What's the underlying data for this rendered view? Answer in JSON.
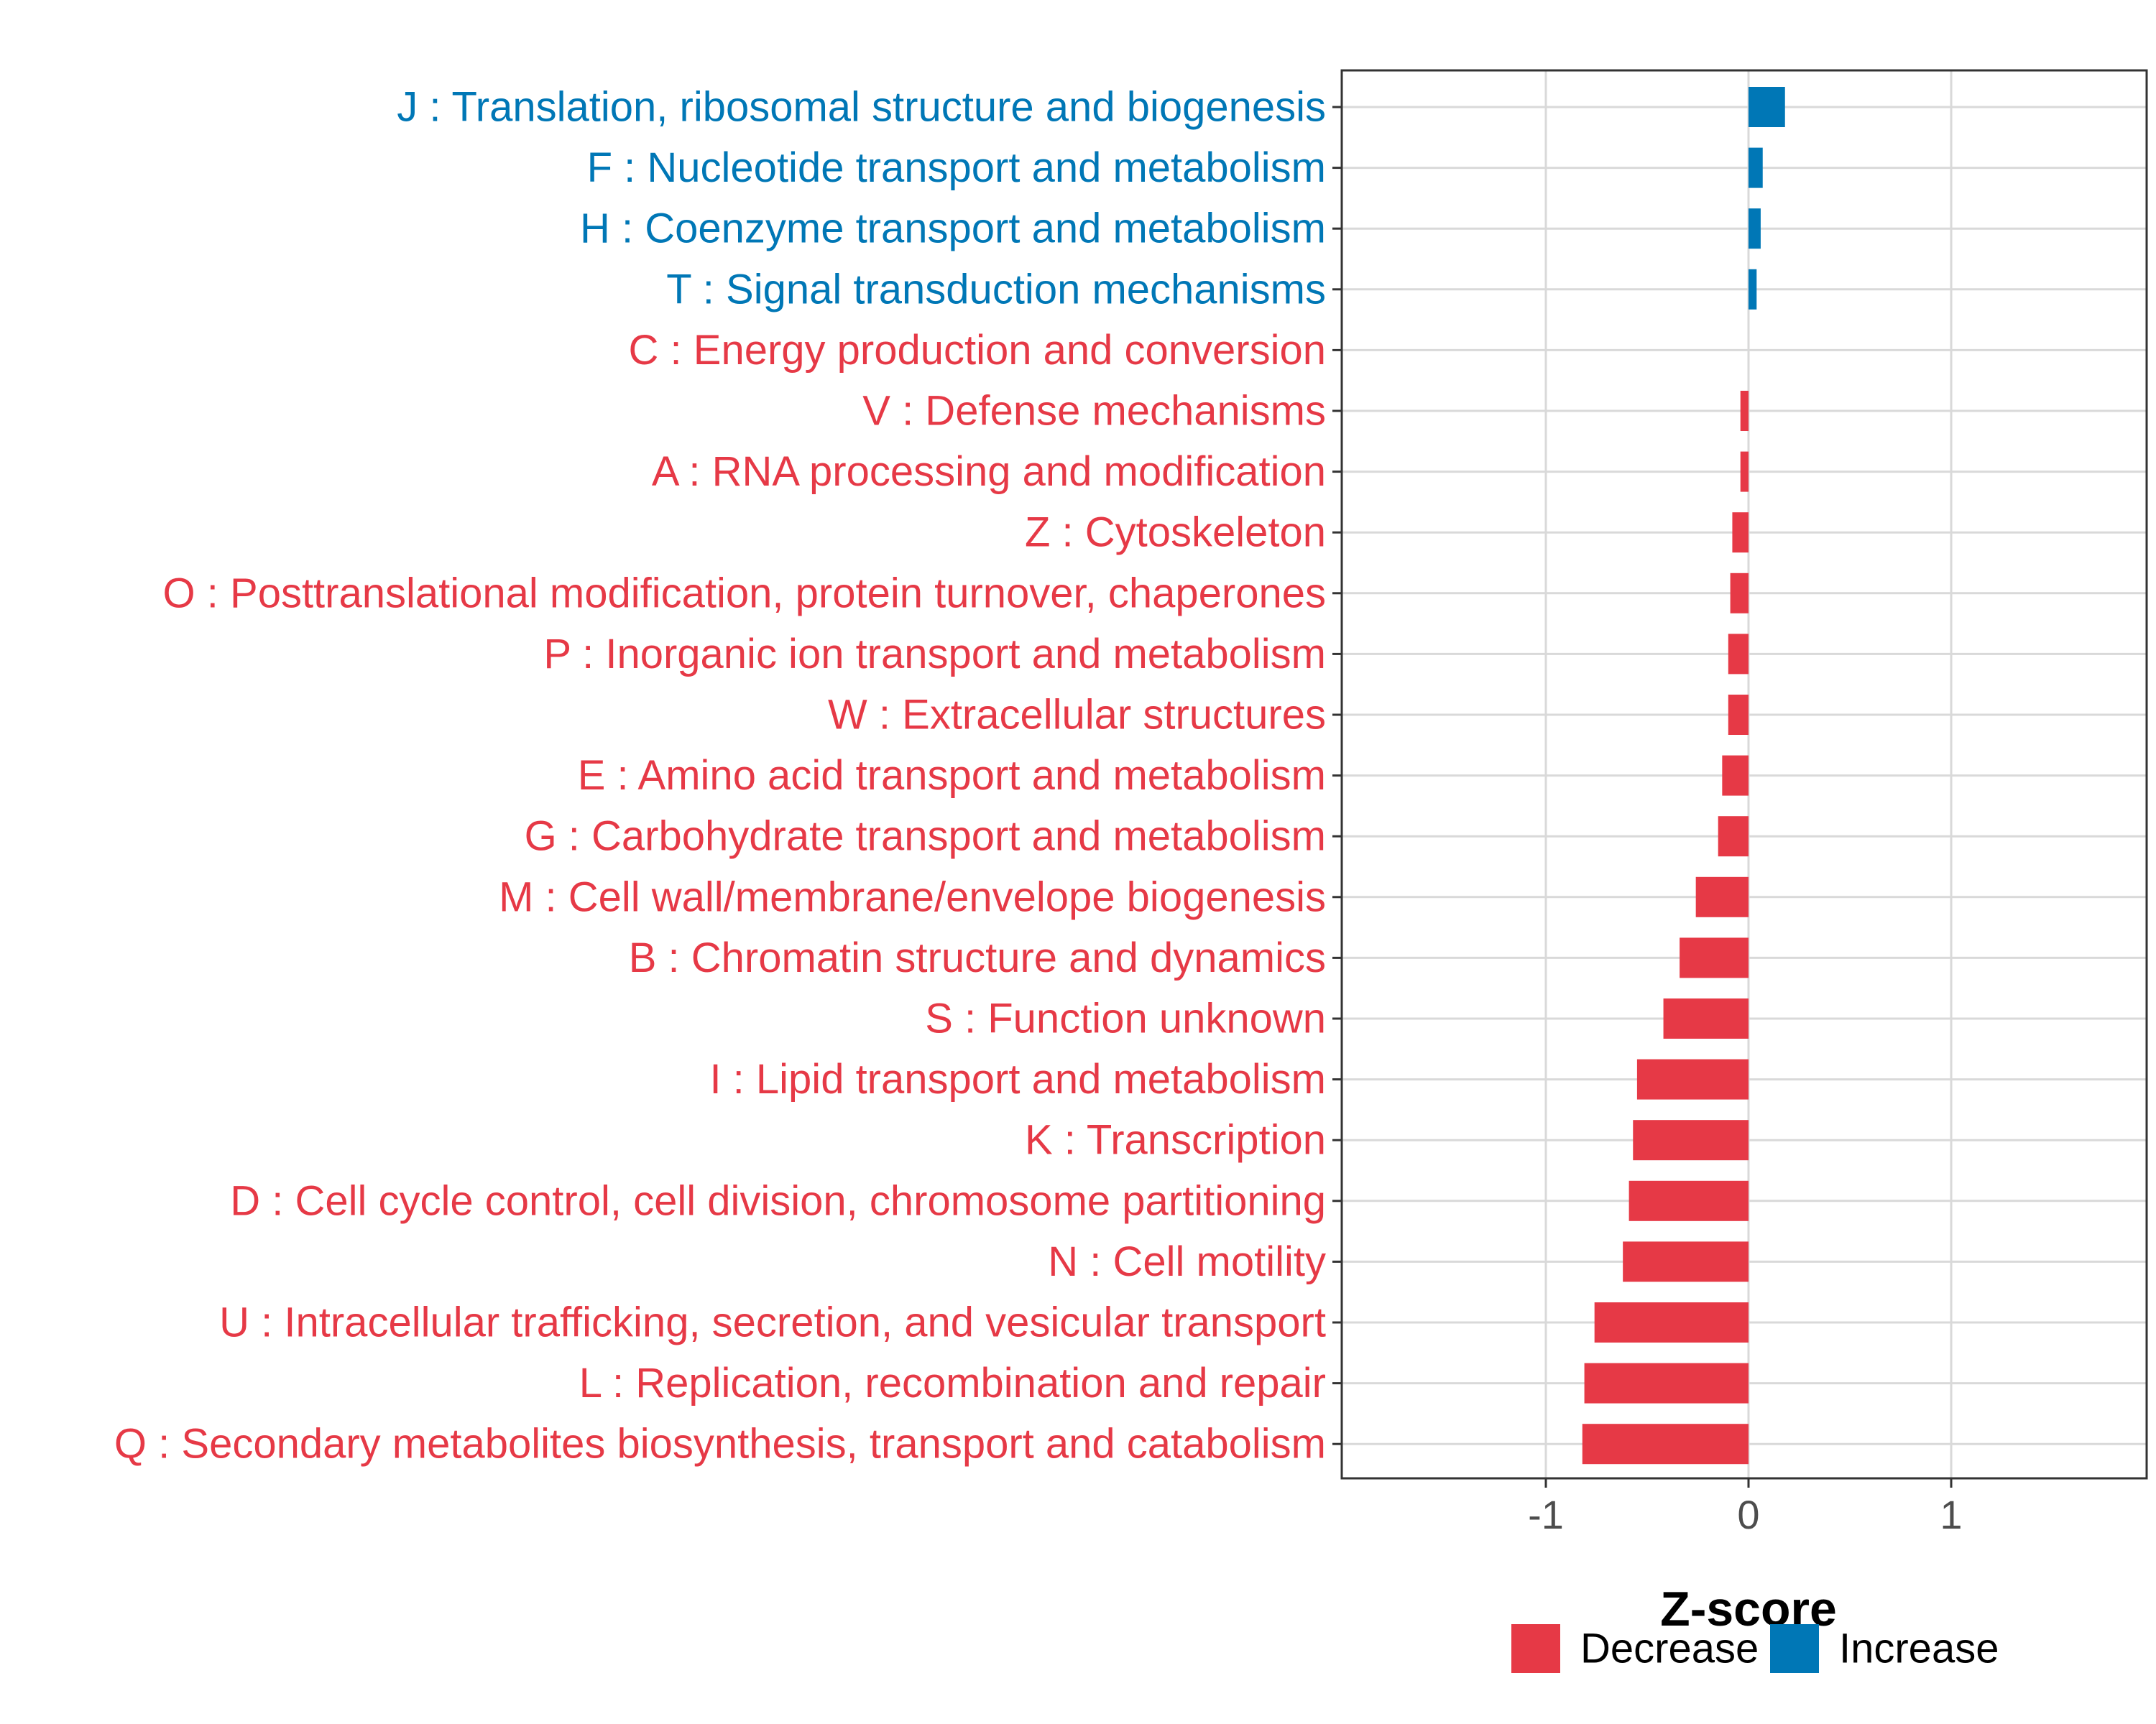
{
  "colors": {
    "decrease": "#E63946",
    "increase": "#0077B6",
    "grid": "#D9D9D9",
    "panel_border": "#333333"
  },
  "chart_data": {
    "type": "bar",
    "orientation": "horizontal",
    "xlabel": "Z-score",
    "ylabel": "",
    "xlim": [
      -2,
      2
    ],
    "xticks": [
      -1,
      0,
      1
    ],
    "xtick_labels": [
      "-1",
      "0",
      "1"
    ],
    "grid": true,
    "legend": {
      "position": "bottom",
      "entries": [
        {
          "name": "Decrease",
          "color": "#E63946"
        },
        {
          "name": "Increase",
          "color": "#0077B6"
        }
      ]
    },
    "categories": [
      "J : Translation, ribosomal structure and biogenesis",
      "F : Nucleotide transport and metabolism",
      "H : Coenzyme transport and metabolism",
      "T : Signal transduction mechanisms",
      "C : Energy production and conversion",
      "V : Defense mechanisms",
      "A : RNA processing and modification",
      "Z : Cytoskeleton",
      "O : Posttranslational modification, protein turnover, chaperones",
      "P : Inorganic ion transport and metabolism",
      "W : Extracellular structures",
      "E : Amino acid transport and metabolism",
      "G : Carbohydrate transport and metabolism",
      "M : Cell wall/membrane/envelope biogenesis",
      "B : Chromatin structure and dynamics",
      "S : Function unknown",
      "I : Lipid transport and metabolism",
      "K : Transcription",
      "D : Cell cycle control, cell division, chromosome partitioning",
      "N : Cell motility",
      "U : Intracellular trafficking, secretion, and vesicular transport",
      "L : Replication, recombination and repair",
      "Q : Secondary metabolites biosynthesis, transport and catabolism"
    ],
    "values": [
      0.18,
      0.07,
      0.06,
      0.04,
      0.0,
      -0.04,
      -0.04,
      -0.08,
      -0.09,
      -0.1,
      -0.1,
      -0.13,
      -0.15,
      -0.26,
      -0.34,
      -0.42,
      -0.55,
      -0.57,
      -0.59,
      -0.62,
      -0.76,
      -0.81,
      -0.82
    ],
    "direction": [
      "Increase",
      "Increase",
      "Increase",
      "Increase",
      "Decrease",
      "Decrease",
      "Decrease",
      "Decrease",
      "Decrease",
      "Decrease",
      "Decrease",
      "Decrease",
      "Decrease",
      "Decrease",
      "Decrease",
      "Decrease",
      "Decrease",
      "Decrease",
      "Decrease",
      "Decrease",
      "Decrease",
      "Decrease",
      "Decrease"
    ]
  }
}
